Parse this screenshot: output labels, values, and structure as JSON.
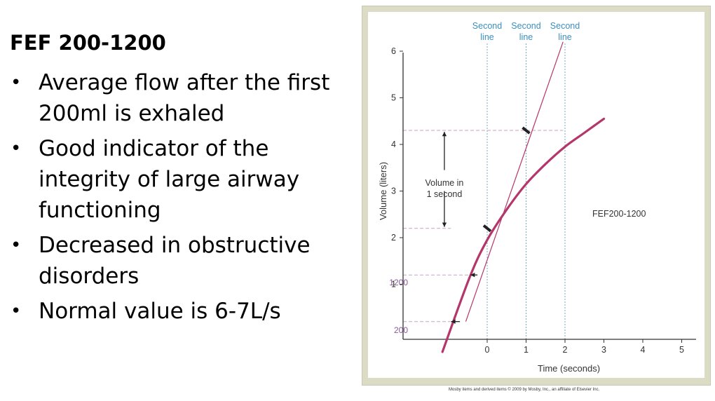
{
  "slide": {
    "title": "FEF 200-1200",
    "bullets": [
      {
        "line1": "Average flow after the first",
        "line2": "200ml is exhaled",
        "line3": ""
      },
      {
        "line1": "Good indicator of the",
        "line2": "integrity of large airway",
        "line3": "functioning"
      },
      {
        "line1": "Decreased in obstructive",
        "line2": "disorders",
        "line3": ""
      },
      {
        "line1": "Normal value is 6-7L/s",
        "line2": "",
        "line3": ""
      }
    ]
  },
  "figure": {
    "annotations": {
      "volume_line1": "Volume in",
      "volume_line2": "1 second",
      "fef_label": "FEF200-1200",
      "mark_1200": "1200",
      "mark_200": "200"
    },
    "second_line_labels": [
      {
        "line1": "Second",
        "line2": "line"
      },
      {
        "line1": "Second",
        "line2": "line"
      },
      {
        "line1": "Second",
        "line2": "line"
      }
    ],
    "credit": "Mosby items and derived items © 2009 by Mosby, Inc., an affiliate of Elsevier Inc."
  },
  "colors": {
    "curve": "#b5366a",
    "tangent": "#b5366a",
    "dashed_h": "#c9a3bf",
    "dashed_v": "#79a9bf",
    "second_label": "#3a8fbf",
    "mark_label": "#8a5a9a"
  },
  "chart_data": {
    "type": "line",
    "xlabel": "Time (seconds)",
    "ylabel": "Volume (liters)",
    "xlim": [
      -1.2,
      5.4
    ],
    "ylim": [
      -0.55,
      6.3
    ],
    "x_ticks": [
      "0",
      "1",
      "2",
      "3",
      "4",
      "5"
    ],
    "y_ticks": [
      "1",
      "2",
      "3",
      "4",
      "5",
      "6"
    ],
    "series": [
      {
        "x": [
          -1.15,
          -0.45,
          0.0,
          0.5,
          1.0,
          1.5,
          2.0,
          2.5,
          3.0
        ],
        "y": [
          -0.45,
          1.15,
          1.95,
          2.6,
          3.15,
          3.58,
          3.95,
          4.25,
          4.55
        ]
      }
    ],
    "tangent": {
      "x": [
        -0.55,
        1.95
      ],
      "y": [
        0.2,
        6.2
      ]
    },
    "volume_levels": [
      2.2,
      4.3
    ],
    "mark_levels": [
      0.2,
      1.2
    ],
    "second_lines_x": [
      0,
      1,
      2
    ]
  }
}
